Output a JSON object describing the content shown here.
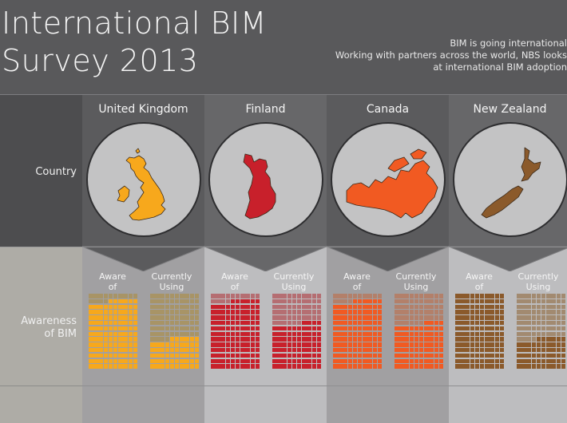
{
  "header": {
    "title_line1": "International BIM",
    "title_line2": "Survey 2013",
    "intro_line1": "BIM is going international",
    "intro_line2": "Working with partners across the world, NBS looks",
    "intro_line3": "at international BIM adoption"
  },
  "row_labels": {
    "country": "Country",
    "awareness_line1": "Awareness",
    "awareness_line2": "of BIM"
  },
  "metric_labels": {
    "aware_line1": "Aware",
    "aware_line2": "of",
    "using_line1": "Currently",
    "using_line2": "Using"
  },
  "countries": [
    {
      "name": "United Kingdom",
      "color": "#f7a81c",
      "faded": "#a89466",
      "shape": "uk",
      "aware_percent": 90,
      "using_percent": 40
    },
    {
      "name": "Finland",
      "color": "#c8202b",
      "faded": "#b56e72",
      "shape": "finland",
      "aware_percent": 90,
      "using_percent": 60
    },
    {
      "name": "Canada",
      "color": "#f15a22",
      "faded": "#b3806a",
      "shape": "canada",
      "aware_percent": 90,
      "using_percent": 60
    },
    {
      "name": "New Zealand",
      "color": "#8b5a2b",
      "faded": "#a28a70",
      "shape": "new-zealand",
      "aware_percent": 100,
      "using_percent": 40
    }
  ]
}
